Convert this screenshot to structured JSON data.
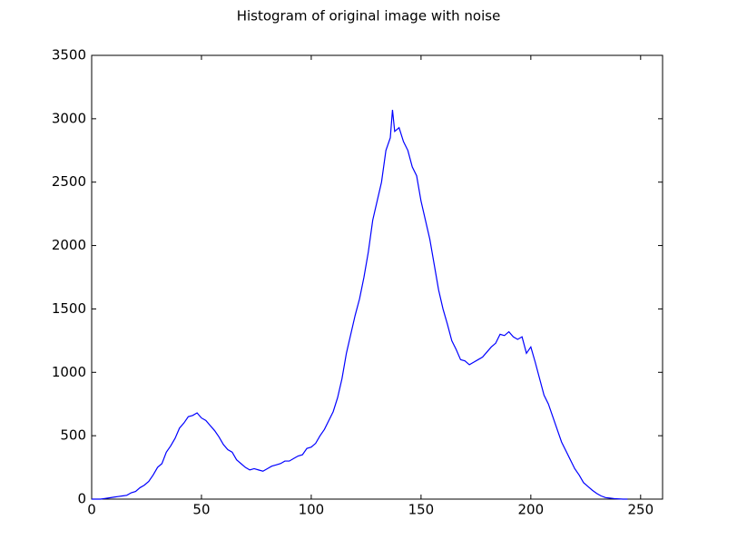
{
  "chart_data": {
    "type": "line",
    "title": "Histogram of original image with noise",
    "x": [
      0,
      2,
      4,
      6,
      8,
      10,
      12,
      14,
      16,
      18,
      20,
      22,
      24,
      26,
      28,
      30,
      32,
      34,
      36,
      38,
      40,
      42,
      44,
      46,
      48,
      50,
      52,
      54,
      56,
      58,
      60,
      62,
      64,
      66,
      68,
      70,
      72,
      74,
      76,
      78,
      80,
      82,
      84,
      86,
      88,
      90,
      92,
      94,
      96,
      98,
      100,
      102,
      104,
      106,
      108,
      110,
      112,
      114,
      116,
      118,
      120,
      122,
      124,
      126,
      128,
      130,
      132,
      134,
      136,
      137,
      138,
      140,
      142,
      144,
      146,
      148,
      150,
      152,
      154,
      156,
      158,
      160,
      162,
      164,
      166,
      168,
      170,
      172,
      174,
      176,
      178,
      180,
      182,
      184,
      186,
      188,
      190,
      192,
      194,
      196,
      198,
      200,
      202,
      204,
      206,
      208,
      210,
      212,
      214,
      216,
      218,
      220,
      222,
      224,
      226,
      228,
      230,
      232,
      234,
      236,
      238,
      240,
      242,
      244
    ],
    "series": [
      {
        "color": "#0000ff",
        "values": [
          0,
          0,
          0,
          5,
          10,
          15,
          20,
          25,
          30,
          50,
          60,
          90,
          110,
          140,
          190,
          250,
          280,
          370,
          420,
          480,
          560,
          600,
          650,
          660,
          680,
          640,
          620,
          580,
          540,
          490,
          430,
          390,
          370,
          310,
          280,
          250,
          230,
          240,
          230,
          220,
          240,
          260,
          270,
          280,
          300,
          300,
          320,
          340,
          350,
          400,
          410,
          440,
          500,
          550,
          620,
          690,
          800,
          950,
          1150,
          1300,
          1450,
          1580,
          1750,
          1950,
          2200,
          2350,
          2500,
          2750,
          2850,
          3070,
          2900,
          2930,
          2820,
          2750,
          2620,
          2550,
          2350,
          2200,
          2050,
          1850,
          1650,
          1500,
          1380,
          1250,
          1180,
          1100,
          1090,
          1060,
          1080,
          1100,
          1120,
          1160,
          1200,
          1230,
          1300,
          1290,
          1320,
          1280,
          1260,
          1280,
          1150,
          1200,
          1080,
          950,
          820,
          750,
          650,
          550,
          450,
          380,
          310,
          240,
          190,
          130,
          100,
          70,
          45,
          25,
          12,
          8,
          4,
          2,
          0,
          0
        ]
      }
    ],
    "xlim": [
      0,
      260
    ],
    "xticks": [
      0,
      50,
      100,
      150,
      200,
      250
    ],
    "ylim": [
      0,
      3500
    ],
    "yticks": [
      0,
      500,
      1000,
      1500,
      2000,
      2500,
      3000,
      3500
    ]
  }
}
